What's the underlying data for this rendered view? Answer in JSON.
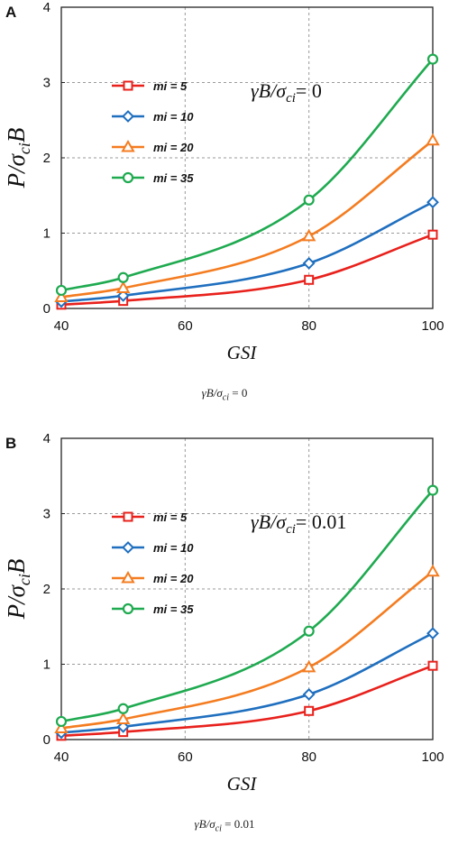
{
  "chart_data": [
    {
      "type": "line",
      "panel_label": "A",
      "caption": "γB/σci = 0",
      "annotation": "γB/σci= 0",
      "xlabel": "GSI",
      "ylabel": "P/σciB",
      "xlim": [
        40,
        100
      ],
      "ylim": [
        0,
        4
      ],
      "xticks": [
        "40",
        "60",
        "80",
        "100"
      ],
      "yticks": [
        "0",
        "1",
        "2",
        "3",
        "4"
      ],
      "grid": true,
      "legend_placement": "upper-left",
      "series": [
        {
          "name": "mi = 5",
          "color": "#e8211c",
          "marker": "square",
          "x": [
            40,
            50,
            80,
            100
          ],
          "y": [
            0.05,
            0.1,
            0.38,
            0.98
          ]
        },
        {
          "name": "mi = 10",
          "color": "#1f6fbf",
          "marker": "diamond",
          "x": [
            40,
            50,
            80,
            100
          ],
          "y": [
            0.09,
            0.17,
            0.6,
            1.41
          ]
        },
        {
          "name": "mi = 20",
          "color": "#f47c20",
          "marker": "triangle",
          "x": [
            40,
            50,
            80,
            100
          ],
          "y": [
            0.15,
            0.27,
            0.96,
            2.23
          ]
        },
        {
          "name": "mi = 35",
          "color": "#1faa50",
          "marker": "circle",
          "x": [
            40,
            50,
            80,
            100
          ],
          "y": [
            0.24,
            0.41,
            1.44,
            3.31
          ]
        }
      ]
    },
    {
      "type": "line",
      "panel_label": "B",
      "caption": "γB/σci = 0.01",
      "annotation": "γB/σci= 0.01",
      "xlabel": "GSI",
      "ylabel": "P/σciB",
      "xlim": [
        40,
        100
      ],
      "ylim": [
        0,
        4
      ],
      "xticks": [
        "40",
        "60",
        "80",
        "100"
      ],
      "yticks": [
        "0",
        "1",
        "2",
        "3",
        "4"
      ],
      "grid": true,
      "legend_placement": "upper-left",
      "series": [
        {
          "name": "mi = 5",
          "color": "#e8211c",
          "marker": "square",
          "x": [
            40,
            50,
            80,
            100
          ],
          "y": [
            0.05,
            0.1,
            0.38,
            0.98
          ]
        },
        {
          "name": "mi = 10",
          "color": "#1f6fbf",
          "marker": "diamond",
          "x": [
            40,
            50,
            80,
            100
          ],
          "y": [
            0.09,
            0.17,
            0.6,
            1.41
          ]
        },
        {
          "name": "mi = 20",
          "color": "#f47c20",
          "marker": "triangle",
          "x": [
            40,
            50,
            80,
            100
          ],
          "y": [
            0.15,
            0.27,
            0.96,
            2.23
          ]
        },
        {
          "name": "mi = 35",
          "color": "#1faa50",
          "marker": "circle",
          "x": [
            40,
            50,
            80,
            100
          ],
          "y": [
            0.24,
            0.41,
            1.44,
            3.31
          ]
        }
      ]
    }
  ]
}
